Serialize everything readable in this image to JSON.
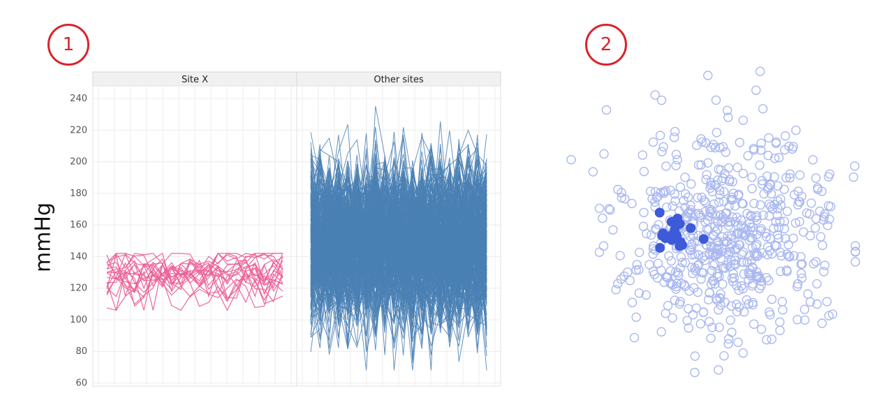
{
  "badges": {
    "panel1": "1",
    "panel2": "2"
  },
  "chart_data": [
    {
      "type": "line",
      "ylabel": "mmHg",
      "ylim": [
        58,
        248
      ],
      "yticks": [
        60,
        80,
        100,
        120,
        140,
        160,
        180,
        200,
        220,
        240
      ],
      "grid": true,
      "facets": [
        {
          "name": "Site X",
          "color": "#ec5f97",
          "series_count": 20,
          "n_points": 20,
          "value_range": [
            106,
            142
          ],
          "center": 128
        },
        {
          "name": "Other sites",
          "color": "#4a80b4",
          "series_count": 300,
          "n_points": 20,
          "value_range": [
            68,
            241
          ],
          "center": 150
        }
      ]
    },
    {
      "type": "scatter",
      "series": [
        {
          "name": "",
          "style": "hollow",
          "color": "#aab8f0",
          "count": 600
        },
        {
          "name": "",
          "style": "filled",
          "color": "#3d5ad8",
          "count": 20
        }
      ]
    }
  ]
}
